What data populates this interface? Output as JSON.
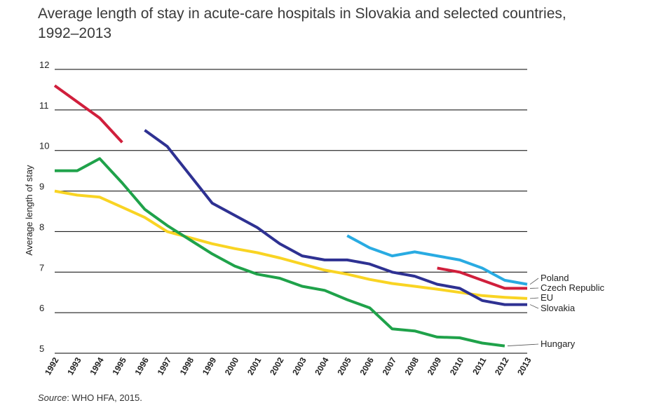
{
  "chart_data": {
    "type": "line",
    "title_line1": "Average length of stay in acute-care hospitals in Slovakia and selected countries,",
    "title_line2": "1992–2013",
    "ylabel": "Average length of stay",
    "xlabel": "",
    "ylim": [
      5,
      12
    ],
    "yticks": [
      "5",
      "6",
      "7",
      "8",
      "9",
      "10",
      "11",
      "12"
    ],
    "grid": true,
    "categories": [
      "1992",
      "1993",
      "1994",
      "1995",
      "1996",
      "1997",
      "1998",
      "1999",
      "2000",
      "2001",
      "2002",
      "2003",
      "2004",
      "2005",
      "2006",
      "2007",
      "2008",
      "2009",
      "2010",
      "2011",
      "2012",
      "2013"
    ],
    "series": [
      {
        "name": "Poland",
        "color": "#29abe2",
        "values": [
          null,
          null,
          null,
          null,
          null,
          null,
          null,
          null,
          null,
          null,
          null,
          null,
          null,
          7.9,
          7.6,
          7.4,
          7.5,
          7.4,
          7.3,
          7.1,
          6.8,
          6.7
        ]
      },
      {
        "name": "Czech Republic",
        "color": "#d01f3c",
        "values": [
          11.6,
          11.2,
          10.8,
          10.2,
          null,
          null,
          null,
          null,
          null,
          null,
          null,
          null,
          null,
          null,
          null,
          null,
          null,
          7.1,
          7.0,
          6.8,
          6.6,
          6.6
        ]
      },
      {
        "name": "EU",
        "color": "#f9d423",
        "values": [
          9.0,
          8.9,
          8.85,
          8.6,
          8.35,
          8.0,
          7.85,
          7.7,
          7.58,
          7.48,
          7.35,
          7.2,
          7.05,
          6.95,
          6.82,
          6.72,
          6.65,
          6.58,
          6.5,
          6.42,
          6.38,
          6.35
        ]
      },
      {
        "name": "Slovakia",
        "color": "#2e3192",
        "values": [
          null,
          null,
          null,
          null,
          10.5,
          10.1,
          9.4,
          8.7,
          8.4,
          8.1,
          7.7,
          7.4,
          7.3,
          7.3,
          7.2,
          7.0,
          6.9,
          6.7,
          6.6,
          6.3,
          6.2,
          6.2
        ]
      },
      {
        "name": "Hungary",
        "color": "#1fa24a",
        "values": [
          9.5,
          9.5,
          9.8,
          9.2,
          8.55,
          8.15,
          7.8,
          7.45,
          7.15,
          6.95,
          6.85,
          6.65,
          6.55,
          6.32,
          6.12,
          5.6,
          5.55,
          5.4,
          5.38,
          5.25,
          5.18,
          null
        ]
      }
    ],
    "legend": "right, labels at line ends"
  },
  "source": {
    "label": "Source",
    "text": ": WHO HFA, 2015."
  }
}
